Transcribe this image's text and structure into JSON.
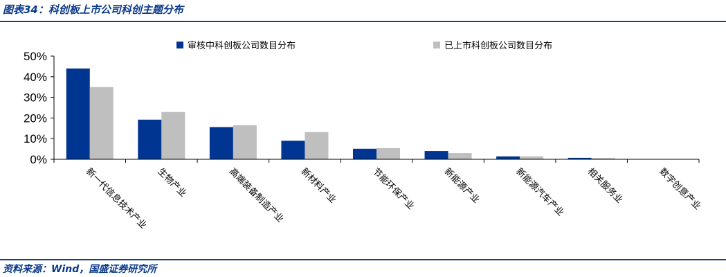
{
  "figure": {
    "title": "图表34：科创板上市公司科创主题分布",
    "source": "资料来源：Wind，国盛证券研究所"
  },
  "colors": {
    "series1": "#003591",
    "series2": "#bfbfbf",
    "rule": "#1a3f85",
    "text_accent": "#0a3a8c"
  },
  "chart_data": {
    "type": "bar",
    "categories": [
      "新一代信息技术产业",
      "生物产业",
      "高端装备制造产业",
      "新材料产业",
      "节能环保产业",
      "新能源产业",
      "新能源汽车产业",
      "相关服务业",
      "数字创意产业"
    ],
    "series": [
      {
        "name": "审核中科创板公司数目分布",
        "values": [
          44.0,
          19.2,
          15.6,
          9.0,
          5.1,
          4.0,
          1.4,
          0.7,
          0.0
        ]
      },
      {
        "name": "已上市科创板公司数目分布",
        "values": [
          35.0,
          22.9,
          16.5,
          13.2,
          5.4,
          3.0,
          1.4,
          0.6,
          0.0
        ]
      }
    ],
    "yticks": [
      "0%",
      "10%",
      "20%",
      "30%",
      "40%",
      "50%"
    ],
    "ylim": [
      0,
      50
    ],
    "legend": "top",
    "grid": false
  }
}
